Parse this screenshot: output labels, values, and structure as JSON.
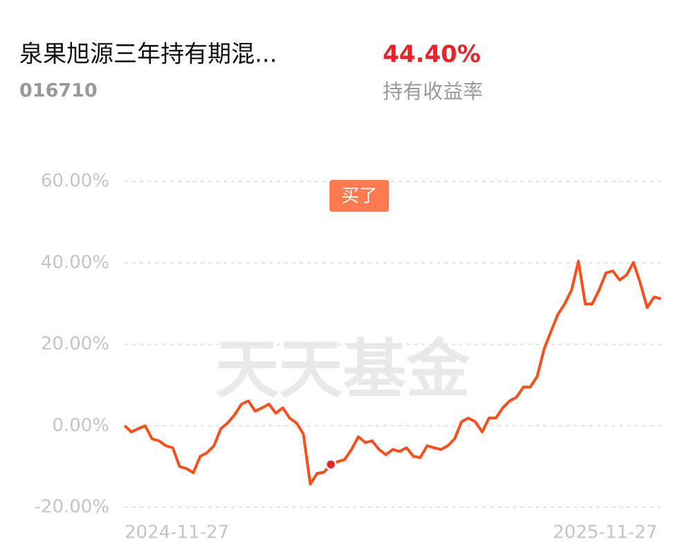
{
  "header": {
    "title": "泉果旭源三年持有期混...",
    "code": "016710",
    "return_value": "44.40%",
    "return_label": "持有收益率"
  },
  "chart_data": {
    "type": "line",
    "color": "#ff4d1c",
    "watermark": "天天基金",
    "annotation": "买了",
    "categories": [
      "2024-11-27",
      null,
      null,
      null,
      null,
      null,
      null,
      null,
      null,
      null,
      null,
      null,
      null,
      null,
      null,
      null,
      null,
      null,
      null,
      null,
      null,
      null,
      null,
      null,
      null,
      null,
      null,
      null,
      null,
      null,
      null,
      null,
      null,
      null,
      null,
      null,
      null,
      null,
      null,
      null,
      null,
      null,
      null,
      null,
      null,
      null,
      null,
      null,
      null,
      null,
      null,
      null,
      null,
      null,
      null,
      null,
      null,
      null,
      null,
      null,
      null,
      null,
      null,
      null,
      null,
      null,
      null,
      null,
      null,
      null,
      null,
      null,
      null,
      null,
      null,
      null,
      null,
      null,
      "2025-11-27"
    ],
    "values": [
      0,
      -1.5,
      -0.7,
      0,
      -3.2,
      -3.7,
      -4.9,
      -5.4,
      -10,
      -10.5,
      -11.5,
      -7.5,
      -6.6,
      -4.9,
      -0.7,
      0.7,
      2.7,
      5.3,
      6.1,
      3.6,
      4.4,
      5.3,
      3.1,
      4.4,
      1.9,
      0.7,
      -2,
      -14.3,
      -11.7,
      -11.4,
      -9.5,
      -8.8,
      -8.3,
      -5.8,
      -2.7,
      -4.1,
      -3.7,
      -5.8,
      -7.1,
      -5.8,
      -6.3,
      -5.4,
      -7.5,
      -7.8,
      -4.9,
      -5.4,
      -5.8,
      -4.9,
      -3.2,
      1,
      1.9,
      1,
      -1.5,
      1.9,
      1.9,
      4.4,
      6.1,
      7,
      9.5,
      9.5,
      12.1,
      18.8,
      23.1,
      27.3,
      29.9,
      33.3,
      40.4,
      29.9,
      29.9,
      33.3,
      37.5,
      38,
      35.8,
      37,
      40.1,
      35,
      29,
      31.6,
      31.2
    ],
    "ylim": [
      -20,
      60
    ],
    "yticks": [
      {
        "value": -20,
        "label": "-20.00%"
      },
      {
        "value": 0,
        "label": "0.00%"
      },
      {
        "value": 20,
        "label": "20.00%"
      },
      {
        "value": 40,
        "label": "40.00%"
      },
      {
        "value": 60,
        "label": "60.00%"
      }
    ],
    "grid": true
  }
}
